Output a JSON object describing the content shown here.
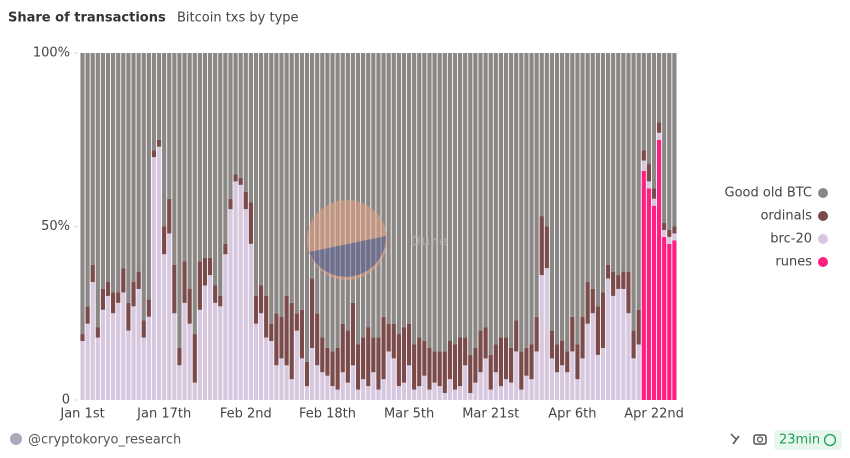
{
  "chart_data": {
    "type": "stacked_bar",
    "title": "Share of transactions",
    "subtitle": "Bitcoin txs by type",
    "watermark": "Dune",
    "categories": [
      "Jan 1st",
      null,
      null,
      null,
      null,
      null,
      null,
      null,
      null,
      null,
      null,
      null,
      null,
      null,
      null,
      null,
      "Jan 17th",
      null,
      null,
      null,
      null,
      null,
      null,
      null,
      null,
      null,
      null,
      null,
      null,
      null,
      null,
      null,
      "Feb 2nd",
      null,
      null,
      null,
      null,
      null,
      null,
      null,
      null,
      null,
      null,
      null,
      null,
      null,
      null,
      null,
      "Feb 18th",
      null,
      null,
      null,
      null,
      null,
      null,
      null,
      null,
      null,
      null,
      null,
      null,
      null,
      null,
      null,
      "Mar 5th",
      null,
      null,
      null,
      null,
      null,
      null,
      null,
      null,
      null,
      null,
      null,
      null,
      null,
      null,
      null,
      "Mar 21st",
      null,
      null,
      null,
      null,
      null,
      null,
      null,
      null,
      null,
      null,
      null,
      null,
      null,
      null,
      null,
      "Apr 6th",
      null,
      null,
      null,
      null,
      null,
      null,
      null,
      null,
      null,
      null,
      null,
      null,
      null,
      null,
      null,
      "Apr 22nd",
      null,
      null,
      null,
      null
    ],
    "series": [
      {
        "name": "Good old BTC",
        "color": "#8b8785",
        "values": [
          81,
          73,
          61,
          79,
          68,
          66,
          69,
          69,
          62,
          72,
          66,
          63,
          77,
          71,
          28,
          25,
          50,
          42,
          61,
          85,
          60,
          68,
          81,
          60,
          59,
          59,
          67,
          70,
          55,
          42,
          35,
          36,
          40,
          43,
          70,
          67,
          70,
          78,
          75,
          76,
          70,
          72,
          75,
          74,
          89,
          65,
          75,
          82,
          85,
          86,
          85,
          78,
          80,
          72,
          84,
          82,
          79,
          82,
          82,
          76,
          78,
          78,
          81,
          79,
          78,
          84,
          82,
          83,
          85,
          86,
          86,
          86,
          83,
          84,
          82,
          82,
          87,
          85,
          80,
          79,
          87,
          84,
          82,
          82,
          85,
          77,
          86,
          85,
          84,
          76,
          47,
          50,
          80,
          84,
          83,
          86,
          76,
          84,
          76,
          66,
          68,
          73,
          69,
          61,
          63,
          64,
          63,
          63,
          80,
          74,
          28,
          32,
          39,
          20,
          49,
          51,
          50
        ]
      },
      {
        "name": "ordinals",
        "color": "#7b4a4a",
        "values": [
          2,
          5,
          5,
          3,
          6,
          4,
          6,
          3,
          7,
          8,
          7,
          5,
          5,
          5,
          2,
          2,
          8,
          10,
          14,
          5,
          12,
          10,
          14,
          14,
          8,
          5,
          5,
          3,
          3,
          3,
          2,
          2,
          5,
          12,
          8,
          8,
          12,
          5,
          15,
          12,
          20,
          22,
          5,
          14,
          7,
          20,
          15,
          10,
          8,
          10,
          12,
          14,
          15,
          18,
          13,
          12,
          17,
          10,
          15,
          18,
          8,
          10,
          15,
          16,
          12,
          13,
          14,
          10,
          12,
          9,
          10,
          12,
          11,
          13,
          14,
          8,
          11,
          10,
          12,
          9,
          10,
          8,
          14,
          12,
          10,
          9,
          11,
          8,
          10,
          10,
          17,
          12,
          8,
          8,
          7,
          6,
          10,
          10,
          12,
          12,
          7,
          14,
          16,
          4,
          7,
          4,
          5,
          12,
          8,
          10,
          3,
          5,
          3,
          3,
          2,
          2,
          2
        ]
      },
      {
        "name": "brc-20",
        "color": "#d8c8df",
        "values": [
          17,
          22,
          34,
          18,
          26,
          30,
          25,
          28,
          31,
          20,
          27,
          32,
          18,
          24,
          70,
          73,
          42,
          48,
          25,
          10,
          28,
          22,
          5,
          26,
          33,
          36,
          28,
          27,
          42,
          55,
          63,
          62,
          55,
          45,
          22,
          25,
          18,
          17,
          10,
          12,
          10,
          6,
          20,
          12,
          4,
          15,
          10,
          8,
          7,
          4,
          3,
          8,
          5,
          10,
          3,
          6,
          4,
          8,
          3,
          6,
          14,
          12,
          4,
          5,
          10,
          3,
          4,
          7,
          3,
          5,
          4,
          2,
          6,
          3,
          4,
          10,
          2,
          5,
          8,
          12,
          3,
          8,
          4,
          6,
          5,
          14,
          3,
          7,
          6,
          14,
          36,
          38,
          12,
          8,
          10,
          8,
          14,
          6,
          12,
          22,
          25,
          13,
          15,
          35,
          30,
          32,
          32,
          25,
          12,
          16,
          3,
          2,
          2,
          2,
          2,
          2,
          2
        ]
      },
      {
        "name": "runes",
        "color": "#ff1f80",
        "values": [
          0,
          0,
          0,
          0,
          0,
          0,
          0,
          0,
          0,
          0,
          0,
          0,
          0,
          0,
          0,
          0,
          0,
          0,
          0,
          0,
          0,
          0,
          0,
          0,
          0,
          0,
          0,
          0,
          0,
          0,
          0,
          0,
          0,
          0,
          0,
          0,
          0,
          0,
          0,
          0,
          0,
          0,
          0,
          0,
          0,
          0,
          0,
          0,
          0,
          0,
          0,
          0,
          0,
          0,
          0,
          0,
          0,
          0,
          0,
          0,
          0,
          0,
          0,
          0,
          0,
          0,
          0,
          0,
          0,
          0,
          0,
          0,
          0,
          0,
          0,
          0,
          0,
          0,
          0,
          0,
          0,
          0,
          0,
          0,
          0,
          0,
          0,
          0,
          0,
          0,
          0,
          0,
          0,
          0,
          0,
          0,
          0,
          0,
          0,
          0,
          0,
          0,
          0,
          0,
          0,
          0,
          0,
          0,
          0,
          0,
          66,
          61,
          56,
          75,
          47,
          45,
          46
        ]
      }
    ],
    "ylim": [
      0,
      100
    ],
    "yticks": [
      0,
      {
        "value": 50,
        "label": "50%"
      },
      {
        "value": 100,
        "label": "100%"
      }
    ],
    "legend": "right"
  },
  "footer": {
    "author": "@cryptokoryo_research",
    "refresh": "23min"
  }
}
